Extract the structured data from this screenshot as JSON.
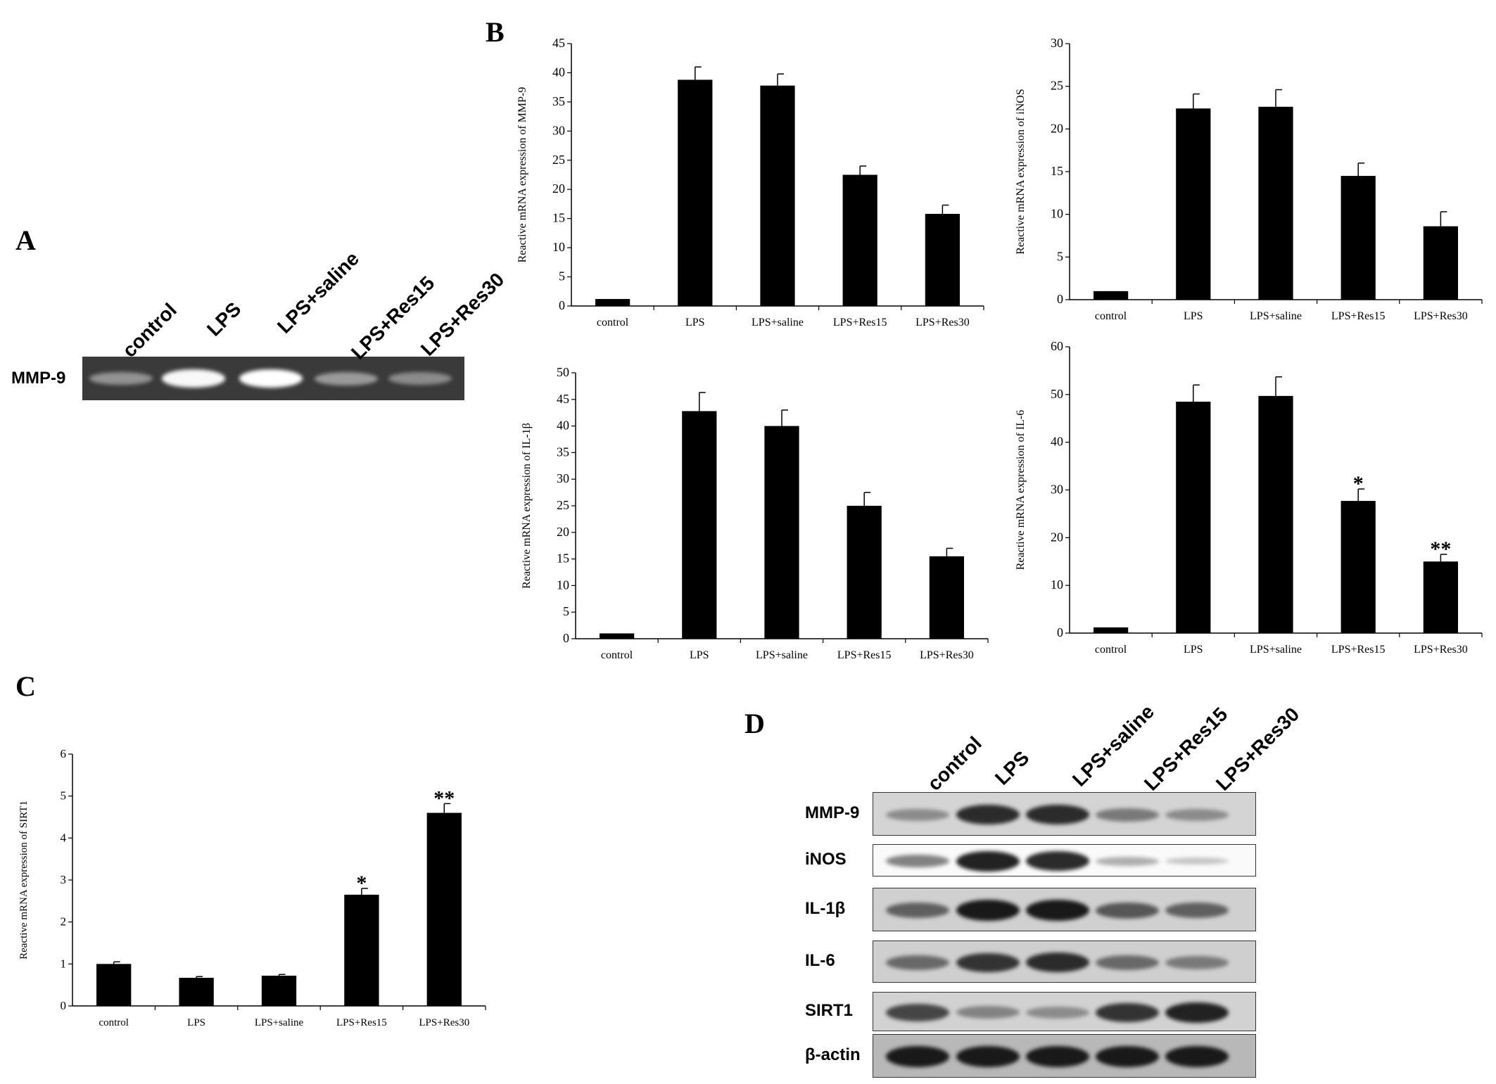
{
  "panels": {
    "a": {
      "letter": "A",
      "row_label": "MMP-9",
      "lanes": [
        "control",
        "LPS",
        "LPS+saline",
        "LPS+Res15",
        "LPS+Res30"
      ],
      "band_intensity": [
        0.25,
        0.95,
        1.0,
        0.3,
        0.2
      ]
    },
    "b": {
      "letter": "B"
    },
    "c": {
      "letter": "C"
    },
    "d": {
      "letter": "D",
      "lanes": [
        "control",
        "LPS",
        "LPS+saline",
        "LPS+Res15",
        "LPS+Res30"
      ],
      "rows": [
        {
          "label": "MMP-9",
          "intensity": [
            0.35,
            0.9,
            0.9,
            0.45,
            0.35
          ]
        },
        {
          "label": "iNOS",
          "intensity": [
            0.4,
            0.95,
            0.9,
            0.15,
            0.02
          ]
        },
        {
          "label": "IL-1β",
          "intensity": [
            0.6,
            1.0,
            1.0,
            0.65,
            0.6
          ]
        },
        {
          "label": "IL-6",
          "intensity": [
            0.55,
            0.85,
            0.9,
            0.55,
            0.45
          ]
        },
        {
          "label": "SIRT1",
          "intensity": [
            0.75,
            0.4,
            0.35,
            0.85,
            0.95
          ]
        },
        {
          "label": "β-actin",
          "intensity": [
            1,
            1,
            1,
            1,
            1
          ]
        }
      ]
    }
  },
  "chart_data": [
    {
      "type": "bar",
      "categories": [
        "control",
        "LPS",
        "LPS+saline",
        "LPS+Res15",
        "LPS+Res30"
      ],
      "values": [
        1.2,
        38.8,
        37.8,
        22.5,
        15.8
      ],
      "errors": [
        0,
        2.2,
        2,
        1.5,
        1.5
      ],
      "annotations": [
        "",
        "",
        "",
        "",
        ""
      ],
      "ylabel": "Reactive mRNA expression of MMP-9",
      "ylim": [
        0,
        45
      ],
      "yticks": [
        "0",
        "5",
        "10",
        "15",
        "20",
        "25",
        "30",
        "35",
        "40",
        "45"
      ]
    },
    {
      "type": "bar",
      "categories": [
        "control",
        "LPS",
        "LPS+saline",
        "LPS+Res15",
        "LPS+Res30"
      ],
      "values": [
        1,
        22.4,
        22.6,
        14.5,
        8.6
      ],
      "errors": [
        0,
        1.7,
        2,
        1.5,
        1.7
      ],
      "annotations": [
        "",
        "",
        "",
        "",
        ""
      ],
      "ylabel": "Reactive mRNA expression of iNOS",
      "ylim": [
        0,
        30
      ],
      "yticks": [
        "0",
        "5",
        "10",
        "15",
        "20",
        "25",
        "30"
      ]
    },
    {
      "type": "bar",
      "categories": [
        "control",
        "LPS",
        "LPS+saline",
        "LPS+Res15",
        "LPS+Res30"
      ],
      "values": [
        1,
        42.8,
        40,
        25,
        15.5
      ],
      "errors": [
        0,
        3.5,
        3,
        2.5,
        1.5
      ],
      "annotations": [
        "",
        "",
        "",
        "",
        ""
      ],
      "ylabel": "Reactive mRNA expression of IL-1β",
      "ylim": [
        0,
        50
      ],
      "yticks": [
        "0",
        "5",
        "10",
        "15",
        "20",
        "25",
        "30",
        "35",
        "40",
        "45",
        "50"
      ]
    },
    {
      "type": "bar",
      "categories": [
        "control",
        "LPS",
        "LPS+saline",
        "LPS+Res15",
        "LPS+Res30"
      ],
      "values": [
        1.2,
        48.5,
        49.7,
        27.7,
        15
      ],
      "errors": [
        0,
        3.5,
        4,
        2.5,
        1.5
      ],
      "annotations": [
        "",
        "",
        "",
        "*",
        "**"
      ],
      "ylabel": "Reactive mRNA expression of IL-6",
      "ylim": [
        0,
        60
      ],
      "yticks": [
        "0",
        "10",
        "20",
        "30",
        "40",
        "50",
        "60"
      ]
    },
    {
      "type": "bar",
      "categories": [
        "control",
        "LPS",
        "LPS+saline",
        "LPS+Res15",
        "LPS+Res30"
      ],
      "values": [
        1,
        0.67,
        0.72,
        2.65,
        4.6
      ],
      "errors": [
        0.05,
        0.03,
        0.03,
        0.15,
        0.22
      ],
      "annotations": [
        "",
        "",
        "",
        "*",
        "**"
      ],
      "ylabel": "Reactive mRNA expression of SIRT1",
      "ylim": [
        0,
        6
      ],
      "yticks": [
        "0",
        "1",
        "2",
        "3",
        "4",
        "5",
        "6"
      ]
    }
  ]
}
